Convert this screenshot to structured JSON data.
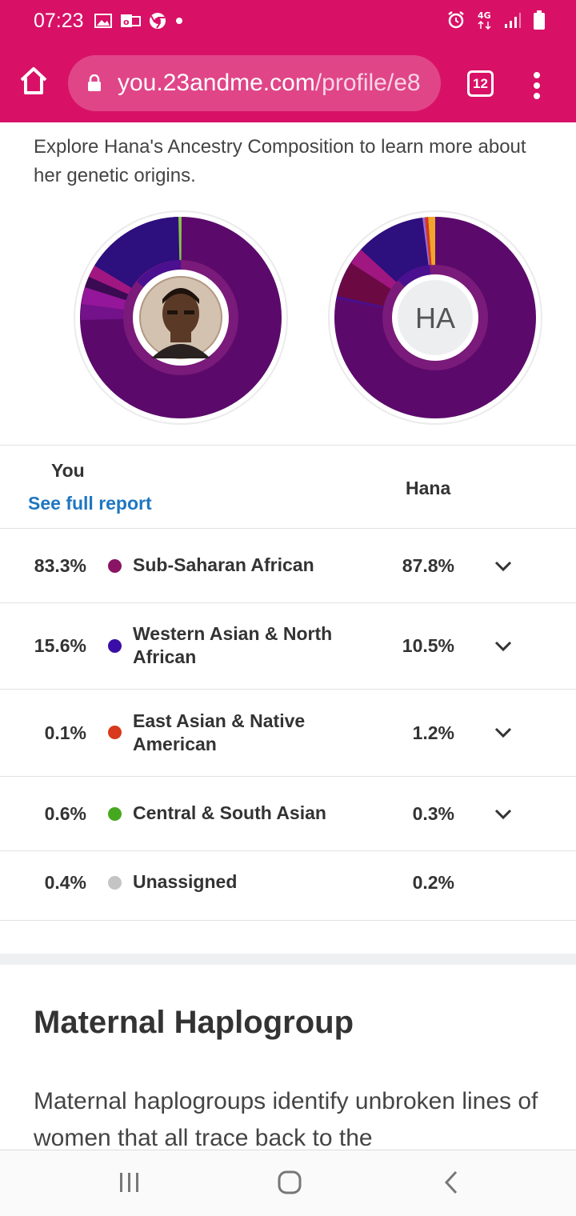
{
  "status_bar": {
    "time": "07:23",
    "icons_left": [
      "gallery-icon",
      "outlook-icon",
      "chrome-icon",
      "dot-icon"
    ],
    "icons_right": [
      "alarm-icon",
      "4g-icon",
      "signal-icon",
      "battery-icon"
    ],
    "network_label": "4G"
  },
  "browser": {
    "url_domain": "you.23andme.com",
    "url_path": "/profile/e8",
    "tab_count": "12"
  },
  "intro_text": "Explore Hana's Ancestry Composition to learn more about her genetic origins.",
  "donuts": {
    "hana_initials": "HA",
    "you_avatar": "user-photo-avatar"
  },
  "table": {
    "you_label": "You",
    "see_full_report": "See full report",
    "hana_label": "Hana",
    "rows": [
      {
        "you": "83.3%",
        "name": "Sub-Saharan African",
        "hana": "87.8%",
        "color": "#8a1464",
        "expandable": true
      },
      {
        "you": "15.6%",
        "name": "Western Asian & North African",
        "hana": "10.5%",
        "color": "#3a0ea6",
        "expandable": true
      },
      {
        "you": "0.1%",
        "name": "East Asian & Native American",
        "hana": "1.2%",
        "color": "#d8381b",
        "expandable": true
      },
      {
        "you": "0.6%",
        "name": "Central & South Asian",
        "hana": "0.3%",
        "color": "#46a81f",
        "expandable": true
      },
      {
        "you": "0.4%",
        "name": "Unassigned",
        "hana": "0.2%",
        "color": "#c4c4c4",
        "expandable": false
      }
    ]
  },
  "maternal": {
    "title": "Maternal Haplogroup",
    "body": "Maternal haplogroups identify unbroken lines of women that all trace back to the"
  },
  "colors": {
    "brand": "#d81167",
    "link": "#1f76c2",
    "donut_main": "#5b0a6b",
    "donut_waf": "#2d0f7e"
  }
}
